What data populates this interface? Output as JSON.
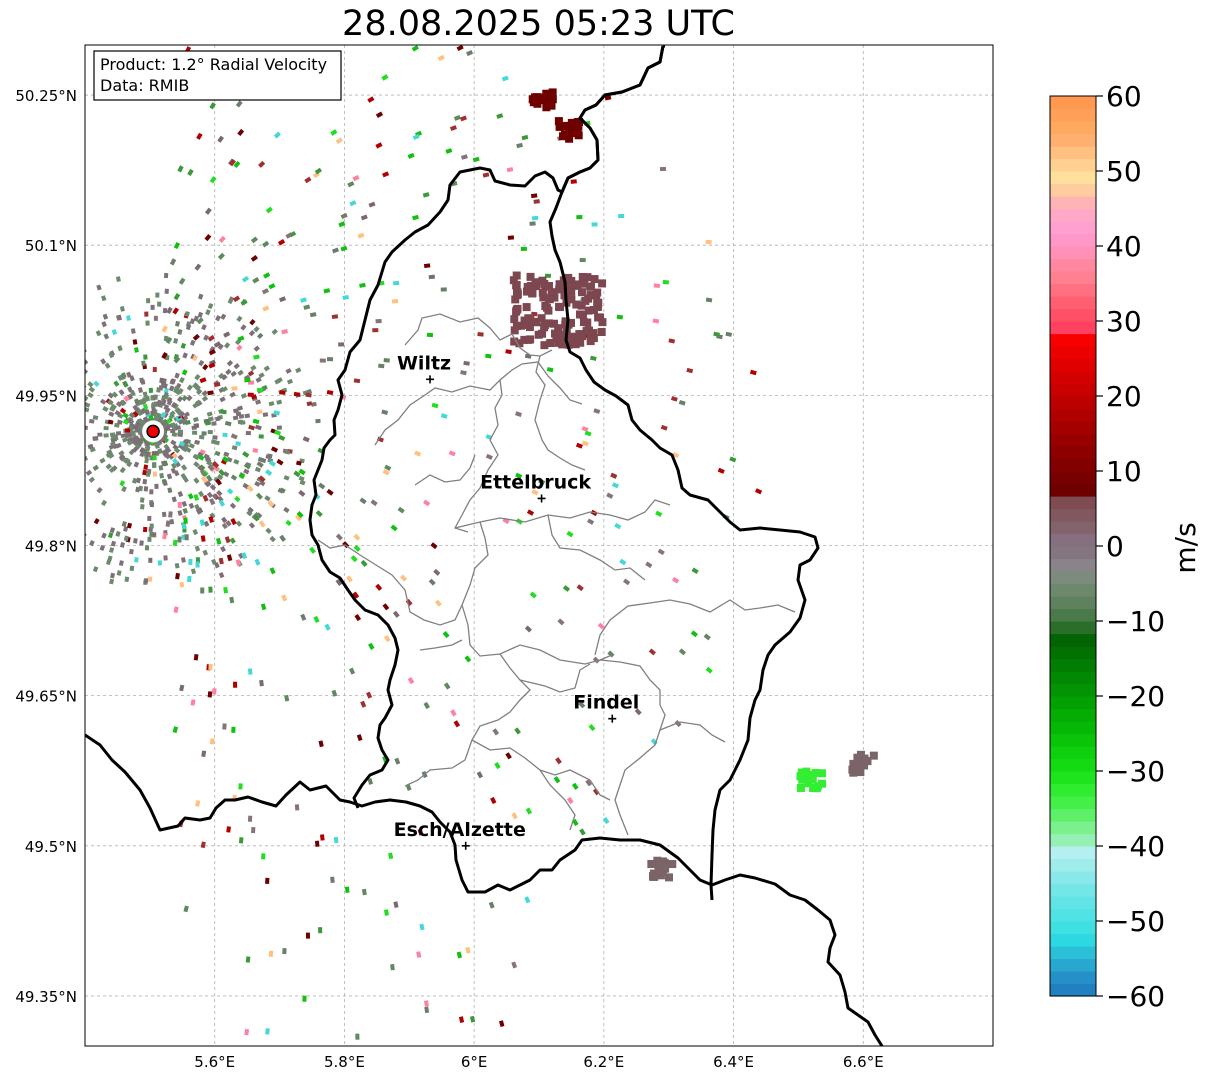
{
  "title": "28.08.2025 05:23 UTC",
  "info_box": {
    "product": "Product: 1.2° Radial Velocity",
    "data": "Data: RMIB"
  },
  "map": {
    "lon_range": [
      5.4,
      6.8
    ],
    "lat_range": [
      49.3,
      50.3
    ],
    "lat_ticks": [
      {
        "value": 50.25,
        "label": "50.25°N"
      },
      {
        "value": 50.1,
        "label": "50.1°N"
      },
      {
        "value": 49.95,
        "label": "49.95°N"
      },
      {
        "value": 49.8,
        "label": "49.8°N"
      },
      {
        "value": 49.65,
        "label": "49.65°N"
      },
      {
        "value": 49.5,
        "label": "49.5°N"
      },
      {
        "value": 49.35,
        "label": "49.35°N"
      }
    ],
    "lon_ticks": [
      {
        "value": 5.6,
        "label": "5.6°E"
      },
      {
        "value": 5.8,
        "label": "5.8°E"
      },
      {
        "value": 6.0,
        "label": "6°E"
      },
      {
        "value": 6.2,
        "label": "6.2°E"
      },
      {
        "value": 6.4,
        "label": "6.4°E"
      },
      {
        "value": 6.6,
        "label": "6.6°E"
      }
    ],
    "radar_site": {
      "lon": 5.505,
      "lat": 49.914
    },
    "cities": [
      {
        "name": "Wiltz",
        "lon": 5.932,
        "lat": 49.966
      },
      {
        "name": "Ettelbruck",
        "lon": 6.104,
        "lat": 49.847
      },
      {
        "name": "Findel",
        "lon": 6.213,
        "lat": 49.627
      },
      {
        "name": "Esch/Alzette",
        "lon": 5.987,
        "lat": 49.5
      }
    ],
    "echo_clusters": [
      {
        "lon": 6.13,
        "lat": 50.035,
        "color": "#7d4750"
      },
      {
        "lon": 6.145,
        "lat": 50.215,
        "color": "#6e0000"
      },
      {
        "lon": 6.105,
        "lat": 50.245,
        "color": "#6e0000"
      },
      {
        "lon": 6.29,
        "lat": 49.477,
        "color": "#7b6468"
      },
      {
        "lon": 6.6,
        "lat": 49.582,
        "color": "#7b6468"
      },
      {
        "lon": 6.52,
        "lat": 49.566,
        "color": "#33ee33"
      }
    ]
  },
  "colorbar": {
    "vmin": -60,
    "vmax": 60,
    "ticks": [
      60,
      50,
      40,
      30,
      20,
      10,
      0,
      -10,
      -20,
      -30,
      -40,
      -50,
      -60
    ],
    "tick_labels": [
      "60",
      "50",
      "40",
      "30",
      "20",
      "10",
      "0",
      "−10",
      "−20",
      "−30",
      "−40",
      "−50",
      "−60"
    ],
    "unit": "m/s",
    "colors": [
      "#2080c0",
      "#2590c8",
      "#28a8d0",
      "#2bc0d8",
      "#2ed8e0",
      "#3ee0e2",
      "#50e2e4",
      "#62e4e6",
      "#74e6e8",
      "#88e8ea",
      "#9eecec",
      "#b4f0f0",
      "#96f0b4",
      "#7cf08c",
      "#5ef068",
      "#44f048",
      "#30ec30",
      "#1ee41e",
      "#14da14",
      "#0ed00e",
      "#0ac40a",
      "#06b806",
      "#04ac04",
      "#02a002",
      "#029402",
      "#028802",
      "#027c02",
      "#027002",
      "#026402",
      "#2a6e2a",
      "#4a7a4a",
      "#5e825e",
      "#6e886e",
      "#7c8c7c",
      "#88848a",
      "#847680",
      "#867080",
      "#84646c",
      "#825860",
      "#804c54",
      "#6e0000",
      "#780000",
      "#820000",
      "#8c0000",
      "#980000",
      "#a40000",
      "#b00000",
      "#bc0000",
      "#c80000",
      "#d40000",
      "#e00000",
      "#ec0000",
      "#f80000",
      "#ff4060",
      "#ff5068",
      "#ff6070",
      "#ff7080",
      "#ff8090",
      "#ff88a0",
      "#ff90b8",
      "#ff98c8",
      "#ffa0d0",
      "#ffa8c8",
      "#ffb4b4",
      "#ffcca0",
      "#ffe09c",
      "#ffd090",
      "#ffc080",
      "#ffb070",
      "#ffa860",
      "#ffa058",
      "#ff9850"
    ]
  }
}
